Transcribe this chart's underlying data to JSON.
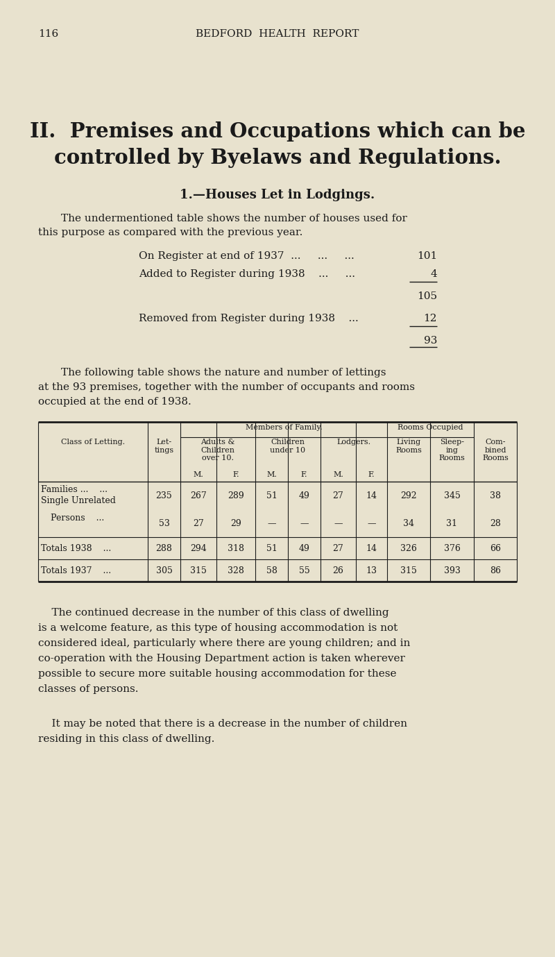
{
  "bg_color": "#e8e2ce",
  "text_color": "#1a1a1a",
  "page_number": "116",
  "header": "BEDFORD  HEALTH  REPORT",
  "section_title_line1": "II.  Premises and Occupations which can be",
  "section_title_line2": "controlled by Byelaws and Regulations.",
  "subsection_title": "1.—Houses Let in Lodgings.",
  "para1_line1": "The undermentioned table shows the number of houses used for",
  "para1_line2": "this purpose as compared with the previous year.",
  "reg1_label": "On Register at end of 1937  ...     ...     ...",
  "reg1_value": "101",
  "reg2_label": "Added to Register during 1938    ...     ...",
  "reg2_value": "4",
  "subtotal": "105",
  "removed_label": "Removed from Register during 1938    ...",
  "removed_value": "12",
  "final_value": "93",
  "para2_line1": "The following table shows the nature and number of lettings",
  "para2_line2": "at the 93 premises, together with the number of occupants and rooms",
  "para2_line3": "occupied at the end of 1938.",
  "table_rows": [
    {
      "class1": "Families ...    ...",
      "class2": "",
      "lettings": "235",
      "adults_m": "267",
      "adults_f": "289",
      "child_m": "51",
      "child_f": "49",
      "lodge_m": "27",
      "lodge_f": "14",
      "living": "292",
      "sleeping": "345",
      "combined": "38"
    },
    {
      "class1": "Single Unrelated",
      "class2": "    Persons    ...",
      "lettings": "53",
      "adults_m": "27",
      "adults_f": "29",
      "child_m": "—",
      "child_f": "—",
      "lodge_m": "—",
      "lodge_f": "—",
      "living": "34",
      "sleeping": "31",
      "combined": "28"
    },
    {
      "class1": "Totals 1938    ...",
      "class2": "",
      "lettings": "288",
      "adults_m": "294",
      "adults_f": "318",
      "child_m": "51",
      "child_f": "49",
      "lodge_m": "27",
      "lodge_f": "14",
      "living": "326",
      "sleeping": "376",
      "combined": "66"
    },
    {
      "class1": "Totals 1937    ...",
      "class2": "",
      "lettings": "305",
      "adults_m": "315",
      "adults_f": "328",
      "child_m": "58",
      "child_f": "55",
      "lodge_m": "26",
      "lodge_f": "13",
      "living": "315",
      "sleeping": "393",
      "combined": "86"
    }
  ],
  "para3_lines": [
    "    The continued decrease in the number of this class of dwelling",
    "is a welcome feature, as this type of housing accommodation is not",
    "considered ideal, particularly where there are young children; and in",
    "co-operation with the Housing Department action is taken wherever",
    "possible to secure more suitable housing accommodation for these",
    "classes of persons."
  ],
  "para4_lines": [
    "    It may be noted that there is a decrease in the number of children",
    "residing in this class of dwelling."
  ]
}
